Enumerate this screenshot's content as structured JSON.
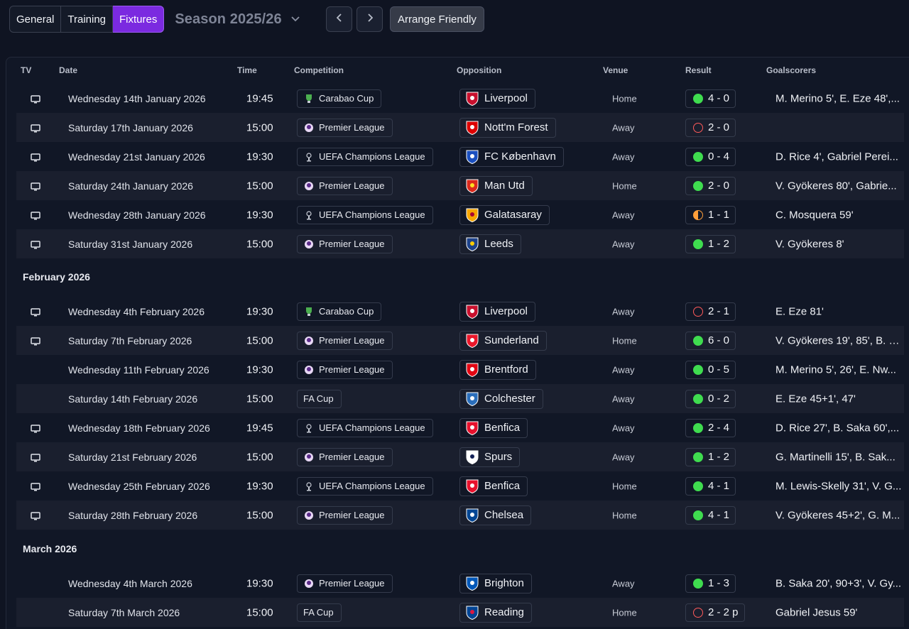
{
  "tabs": [
    {
      "label": "General",
      "active": false
    },
    {
      "label": "Training",
      "active": false
    },
    {
      "label": "Fixtures",
      "active": true
    }
  ],
  "season": {
    "label": "Season 2025/26"
  },
  "toolbar": {
    "arrange_friendly": "Arrange Friendly"
  },
  "table": {
    "headers": {
      "tv": "TV",
      "date": "Date",
      "time": "Time",
      "competition": "Competition",
      "opposition": "Opposition",
      "venue": "Venue",
      "result": "Result",
      "goalscorers": "Goalscorers"
    },
    "months": [
      "February 2026",
      "March 2026"
    ],
    "rows": [
      {
        "tv": true,
        "date": "Wednesday 14th January 2026",
        "time": "19:45",
        "competition": "Carabao Cup",
        "opposition": "Liverpool",
        "venue": "Home",
        "result": "4 - 0",
        "outcome": "win",
        "scorers": "M. Merino 5', E. Eze 48',..."
      },
      {
        "tv": true,
        "date": "Saturday 17th January 2026",
        "time": "15:00",
        "competition": "Premier League",
        "opposition": "Nott'm Forest",
        "venue": "Away",
        "result": "2 - 0",
        "outcome": "loss",
        "scorers": ""
      },
      {
        "tv": true,
        "date": "Wednesday 21st January 2026",
        "time": "19:30",
        "competition": "UEFA Champions League",
        "opposition": "FC København",
        "venue": "Away",
        "result": "0 - 4",
        "outcome": "win",
        "scorers": "D. Rice 4', Gabriel Perei..."
      },
      {
        "tv": true,
        "date": "Saturday 24th January 2026",
        "time": "15:00",
        "competition": "Premier League",
        "opposition": "Man Utd",
        "venue": "Home",
        "result": "2 - 0",
        "outcome": "win",
        "scorers": "V. Gyökeres 80', Gabrie..."
      },
      {
        "tv": true,
        "date": "Wednesday 28th January 2026",
        "time": "19:30",
        "competition": "UEFA Champions League",
        "opposition": "Galatasaray",
        "venue": "Away",
        "result": "1 - 1",
        "outcome": "draw",
        "scorers": "C. Mosquera 59'"
      },
      {
        "tv": true,
        "date": "Saturday 31st January 2026",
        "time": "15:00",
        "competition": "Premier League",
        "opposition": "Leeds",
        "venue": "Away",
        "result": "1 - 2",
        "outcome": "win",
        "scorers": "V. Gyökeres 8'"
      },
      {
        "tv": true,
        "date": "Wednesday 4th February 2026",
        "time": "19:30",
        "competition": "Carabao Cup",
        "opposition": "Liverpool",
        "venue": "Away",
        "result": "2 - 1",
        "outcome": "loss",
        "scorers": "E. Eze 81'"
      },
      {
        "tv": true,
        "date": "Saturday 7th February 2026",
        "time": "15:00",
        "competition": "Premier League",
        "opposition": "Sunderland",
        "venue": "Home",
        "result": "6 - 0",
        "outcome": "win",
        "scorers": "V. Gyökeres 19', 85', B. S..."
      },
      {
        "tv": false,
        "date": "Wednesday 11th February 2026",
        "time": "19:30",
        "competition": "Premier League",
        "opposition": "Brentford",
        "venue": "Away",
        "result": "0 - 5",
        "outcome": "win",
        "scorers": "M. Merino 5', 26', E. Nw..."
      },
      {
        "tv": false,
        "date": "Saturday 14th February 2026",
        "time": "15:00",
        "competition": "FA Cup",
        "opposition": "Colchester",
        "venue": "Away",
        "result": "0 - 2",
        "outcome": "win",
        "scorers": "E. Eze 45+1', 47'"
      },
      {
        "tv": true,
        "date": "Wednesday 18th February 2026",
        "time": "19:45",
        "competition": "UEFA Champions League",
        "opposition": "Benfica",
        "venue": "Away",
        "result": "2 - 4",
        "outcome": "win",
        "scorers": "D. Rice 27', B. Saka 60',..."
      },
      {
        "tv": true,
        "date": "Saturday 21st February 2026",
        "time": "15:00",
        "competition": "Premier League",
        "opposition": "Spurs",
        "venue": "Away",
        "result": "1 - 2",
        "outcome": "win",
        "scorers": "G. Martinelli 15', B. Sak..."
      },
      {
        "tv": true,
        "date": "Wednesday 25th February 2026",
        "time": "19:30",
        "competition": "UEFA Champions League",
        "opposition": "Benfica",
        "venue": "Home",
        "result": "4 - 1",
        "outcome": "win",
        "scorers": "M. Lewis-Skelly 31', V. G..."
      },
      {
        "tv": true,
        "date": "Saturday 28th February 2026",
        "time": "15:00",
        "competition": "Premier League",
        "opposition": "Chelsea",
        "venue": "Home",
        "result": "4 - 1",
        "outcome": "win",
        "scorers": "V. Gyökeres 45+2', G. M..."
      },
      {
        "tv": false,
        "date": "Wednesday 4th March 2026",
        "time": "19:30",
        "competition": "Premier League",
        "opposition": "Brighton",
        "venue": "Away",
        "result": "1 - 3",
        "outcome": "win",
        "scorers": "B. Saka 20', 90+3', V. Gy..."
      },
      {
        "tv": false,
        "date": "Saturday 7th March 2026",
        "time": "15:00",
        "competition": "FA Cup",
        "opposition": "Reading",
        "venue": "Home",
        "result": "2 - 2 p",
        "outcome": "loss",
        "scorers": "Gabriel Jesus 59'"
      }
    ]
  }
}
